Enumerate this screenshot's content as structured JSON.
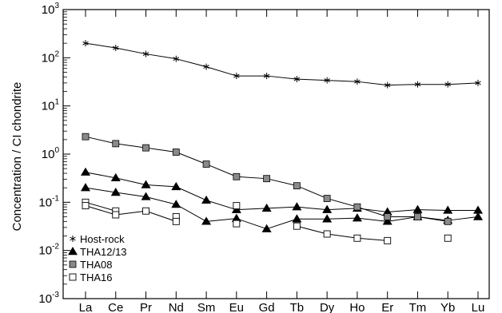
{
  "chart_data": {
    "type": "line",
    "yscale": "log",
    "ylabel": "Concentration / CI chondrite",
    "ylim": [
      0.001,
      1000
    ],
    "y_ticks": [
      {
        "value": 0.001,
        "base": "10",
        "exp": "-3"
      },
      {
        "value": 0.01,
        "base": "10",
        "exp": "-2"
      },
      {
        "value": 0.1,
        "base": "10",
        "exp": "-1"
      },
      {
        "value": 1,
        "base": "10",
        "exp": "0"
      },
      {
        "value": 10,
        "base": "10",
        "exp": "1"
      },
      {
        "value": 100,
        "base": "10",
        "exp": "2"
      },
      {
        "value": 1000,
        "base": "10",
        "exp": "3"
      }
    ],
    "categories": [
      "La",
      "Ce",
      "Pr",
      "Nd",
      "Sm",
      "Eu",
      "Gd",
      "Tb",
      "Dy",
      "Ho",
      "Er",
      "Tm",
      "Yb",
      "Lu"
    ],
    "grid": false,
    "legend_position": "bottom-left",
    "series": [
      {
        "name": "Host-rock",
        "marker": "asterisk",
        "connected": true,
        "values": [
          200,
          160,
          120,
          95,
          65,
          42,
          42,
          36,
          34,
          32,
          27,
          28,
          28,
          30
        ]
      },
      {
        "name": "THA12/13",
        "marker": "filled-triangle",
        "connected": true,
        "values": [
          0.42,
          0.32,
          0.23,
          0.21,
          0.11,
          0.07,
          0.075,
          0.08,
          0.07,
          0.075,
          0.063,
          0.07,
          0.068,
          0.068
        ]
      },
      {
        "name": "THA12/13",
        "marker": "filled-triangle",
        "connected": true,
        "legend": false,
        "values": [
          0.2,
          0.16,
          0.13,
          0.09,
          0.04,
          0.046,
          0.028,
          0.045,
          0.045,
          0.047,
          0.04,
          0.05,
          0.042,
          0.05
        ]
      },
      {
        "name": "THA08",
        "marker": "gray-square",
        "connected": true,
        "values": [
          2.3,
          1.65,
          1.35,
          1.1,
          0.62,
          0.34,
          0.31,
          0.22,
          0.12,
          0.08,
          0.05,
          0.05,
          0.04,
          null
        ]
      },
      {
        "name": "THA16",
        "marker": "open-square",
        "connected": true,
        "values": [
          0.1,
          0.066,
          null,
          0.05,
          null,
          0.085,
          null,
          null,
          null,
          null,
          null,
          null,
          null,
          null
        ]
      },
      {
        "name": "THA16",
        "marker": "open-square",
        "connected": true,
        "legend": false,
        "values": [
          0.085,
          0.055,
          0.066,
          0.04,
          null,
          0.036,
          null,
          0.032,
          0.022,
          0.018,
          0.016,
          null,
          0.018,
          null
        ]
      }
    ],
    "legend": [
      {
        "name": "Host-rock",
        "symbol": "*"
      },
      {
        "name": "THA12/13",
        "symbol": "▲"
      },
      {
        "name": "THA08",
        "symbol": "■"
      },
      {
        "name": "THA16",
        "symbol": "□"
      }
    ]
  }
}
